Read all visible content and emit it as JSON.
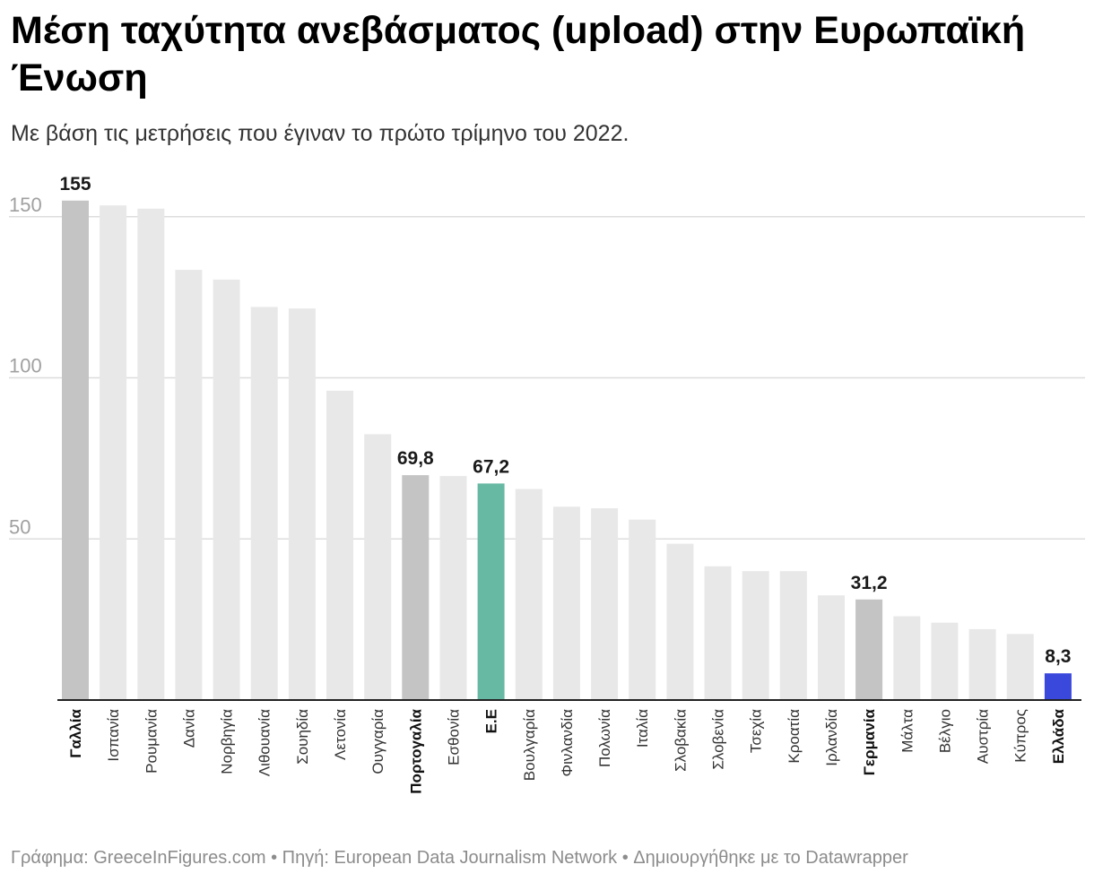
{
  "title": "Μέση ταχύτητα ανεβάσματος (upload) στην Ευρωπαϊκή Ένωση",
  "subtitle": "Με βάση τις μετρήσεις που έγιναν το πρώτο τρίμηνο του 2022.",
  "footer": "Γράφημα: GreeceInFigures.com • Πηγή: European Data Journalism Network • Δημιουργήθηκε με το Datawrapper",
  "colors": {
    "default": "#e8e8e8",
    "highlight_gray": "#c4c4c4",
    "eu": "#67b9a4",
    "greece": "#3a48db"
  },
  "chart_data": {
    "type": "bar",
    "ylim": [
      0,
      160
    ],
    "yticks": [
      50,
      100,
      150
    ],
    "grid": true,
    "categories": [
      "Γαλλία",
      "Ισπανία",
      "Ρουμανία",
      "Δανία",
      "Νορβηγία",
      "Λιθουανία",
      "Σουηδία",
      "Λετονία",
      "Ουγγαρία",
      "Πορτογαλία",
      "Εσθονία",
      "Ε.Ε",
      "Βουλγαρία",
      "Φινλανδία",
      "Πολωνία",
      "Ιταλία",
      "Σλοβακία",
      "Σλοβενία",
      "Τσεχία",
      "Κροατία",
      "Ιρλανδία",
      "Γερμανία",
      "Μάλτα",
      "Βέλγιο",
      "Αυστρία",
      "Κύπρος",
      "Ελλάδα"
    ],
    "values": [
      155,
      153.5,
      152.5,
      133.5,
      130.5,
      122,
      121.5,
      96,
      82.5,
      69.8,
      69.5,
      67.2,
      65.5,
      60,
      59.5,
      56,
      48.5,
      41.5,
      40,
      40,
      32.5,
      31.2,
      26,
      24,
      22,
      20.5,
      8.3
    ],
    "data_labels": {
      "0": "155",
      "9": "69,8",
      "11": "67,2",
      "21": "31,2",
      "26": "8,3"
    },
    "bold_categories": [
      0,
      9,
      11,
      21,
      26
    ],
    "bar_color_keys": [
      "highlight_gray",
      "default",
      "default",
      "default",
      "default",
      "default",
      "default",
      "default",
      "default",
      "highlight_gray",
      "default",
      "eu",
      "default",
      "default",
      "default",
      "default",
      "default",
      "default",
      "default",
      "default",
      "default",
      "highlight_gray",
      "default",
      "default",
      "default",
      "default",
      "greece"
    ]
  }
}
